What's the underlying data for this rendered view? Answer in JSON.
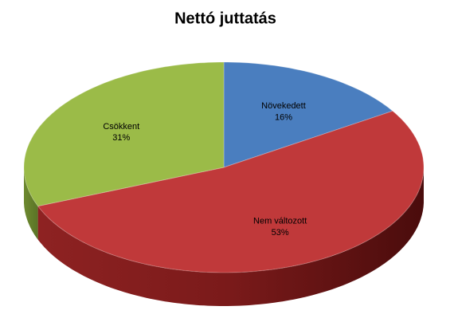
{
  "chart_data": {
    "type": "pie",
    "title": "Nettó juttatás",
    "categories": [
      "Növekedett",
      "Nem változott",
      "Csökkent"
    ],
    "values": [
      16,
      53,
      31
    ],
    "value_labels": [
      "16%",
      "53%",
      "31%"
    ],
    "colors": [
      "#4a7ebf",
      "#c0393a",
      "#9bbb48"
    ]
  }
}
